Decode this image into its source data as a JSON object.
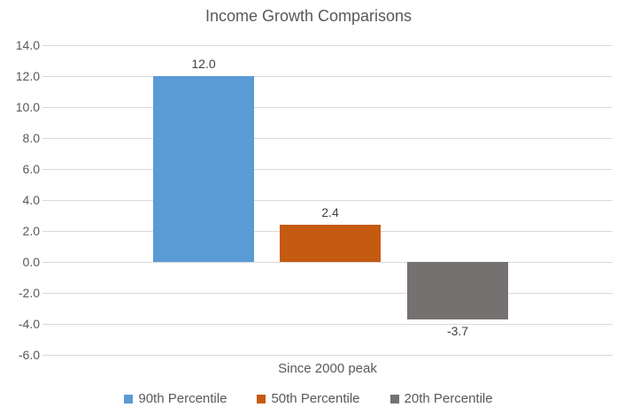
{
  "title": "Income Growth Comparisons",
  "chart_data": {
    "type": "bar",
    "title": "Income Growth Comparisons",
    "categories": [
      "Since 2000 peak"
    ],
    "xlabel": "Since 2000 peak",
    "ylabel": "",
    "series": [
      {
        "name": "90th Percentile",
        "value": 12.0,
        "data_label": "12.0",
        "color": "#5b9bd5"
      },
      {
        "name": "50th Percentile",
        "value": 2.4,
        "data_label": "2.4",
        "color": "#c55a11"
      },
      {
        "name": "20th Percentile",
        "value": -3.7,
        "data_label": "-3.7",
        "color": "#767171"
      }
    ],
    "y_axis": {
      "min": -6.0,
      "max": 14.0,
      "step": 2.0,
      "tick_labels": [
        "14.0",
        "12.0",
        "10.0",
        "8.0",
        "6.0",
        "4.0",
        "2.0",
        "0.0",
        "-2.0",
        "-4.0",
        "-6.0"
      ]
    },
    "grid": true,
    "legend_position": "bottom",
    "colors": {
      "gridline": "#d9d9d9",
      "title_text": "#595959",
      "axis_text": "#595959",
      "data_label_text": "#404040",
      "legend_text": "#595959",
      "background": "#ffffff"
    }
  }
}
